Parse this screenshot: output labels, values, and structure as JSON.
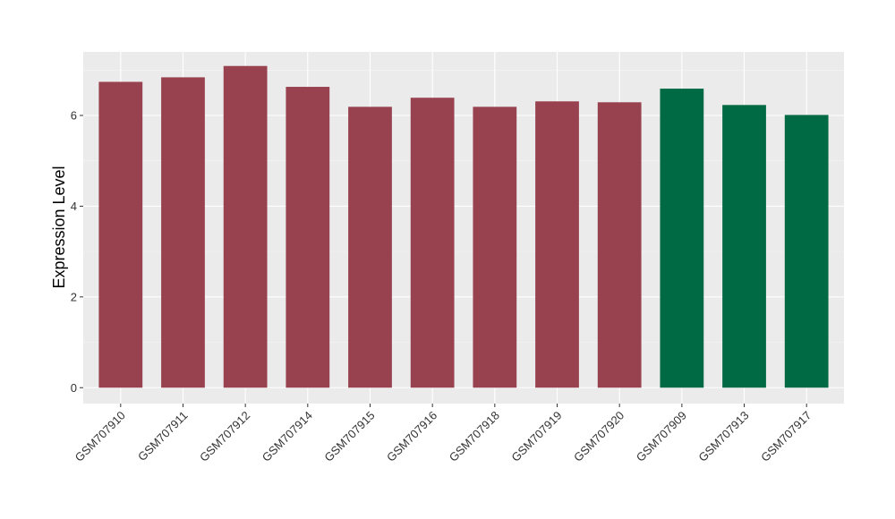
{
  "chart_data": {
    "type": "bar",
    "title": "",
    "xlabel": "",
    "ylabel": "Expression Level",
    "ylim": [
      -0.35,
      7.4
    ],
    "yticks": [
      0,
      2,
      4,
      6
    ],
    "grid": true,
    "legend": "none",
    "categories": [
      "GSM707910",
      "GSM707911",
      "GSM707912",
      "GSM707914",
      "GSM707915",
      "GSM707916",
      "GSM707918",
      "GSM707919",
      "GSM707920",
      "GSM707909",
      "GSM707913",
      "GSM707917"
    ],
    "values": [
      6.74,
      6.84,
      7.09,
      6.63,
      6.19,
      6.39,
      6.19,
      6.31,
      6.29,
      6.59,
      6.23,
      6.01
    ],
    "bar_colors": [
      "#99424f",
      "#99424f",
      "#99424f",
      "#99424f",
      "#99424f",
      "#99424f",
      "#99424f",
      "#99424f",
      "#99424f",
      "#006a44",
      "#006a44",
      "#006a44"
    ]
  }
}
